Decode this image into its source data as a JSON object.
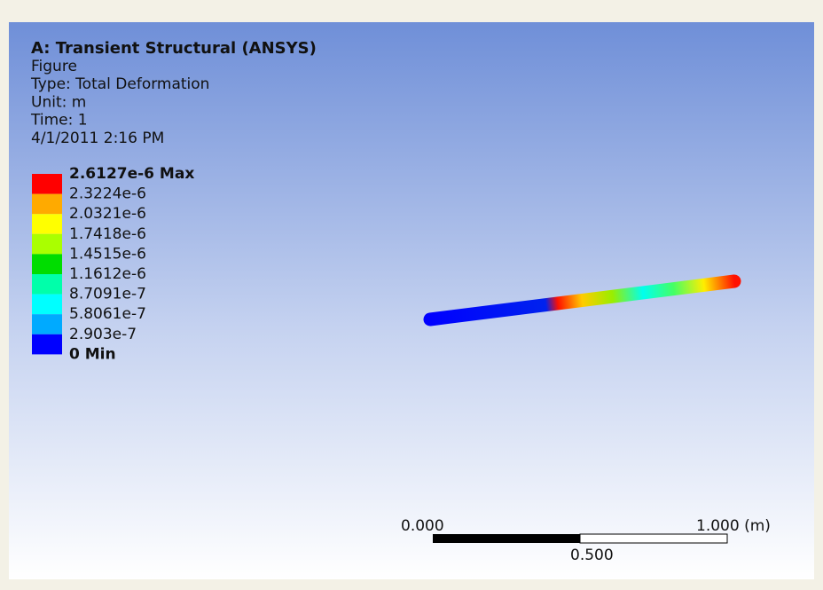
{
  "header": {
    "title": "A: Transient Structural (ANSYS)",
    "lines": [
      "Figure",
      "Type: Total Deformation",
      "Unit: m",
      "Time: 1",
      "4/1/2011 2:16 PM"
    ]
  },
  "legend": {
    "labels": [
      "2.6127e-6 Max",
      "2.3224e-6",
      "2.0321e-6",
      "1.7418e-6",
      "1.4515e-6",
      "1.1612e-6",
      "8.7091e-7",
      "5.8061e-7",
      "2.903e-7",
      "0 Min"
    ],
    "colors": [
      "#ff0000",
      "#ffaa00",
      "#ffff00",
      "#aaff00",
      "#00dd00",
      "#00ffaa",
      "#00ffff",
      "#00aaff",
      "#0000ff"
    ]
  },
  "scale_bar": {
    "left": "0.000",
    "right": "1.000 (m)",
    "middle": "0.500"
  }
}
